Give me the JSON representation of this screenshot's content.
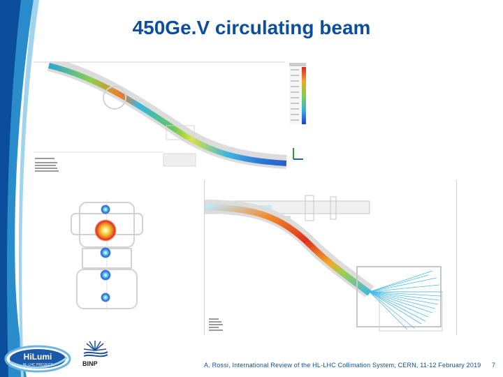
{
  "slide": {
    "title": "450Ge.V circulating beam",
    "footer": "A. Rossi, International Review of the HL-LHC Collimation System, CERN, 11-12 February 2019",
    "page_number": "7"
  },
  "logos": {
    "hilumi_main": "HiLumi",
    "hilumi_sub": "HL-LHC PROJECT",
    "binp": "BINP"
  },
  "colors": {
    "brand_blue": "#0b4f9c",
    "accent_light_blue": "#4aa8d8"
  },
  "icons": {
    "decoration": "curved-swoosh",
    "binp_logo": "starburst-logo"
  }
}
